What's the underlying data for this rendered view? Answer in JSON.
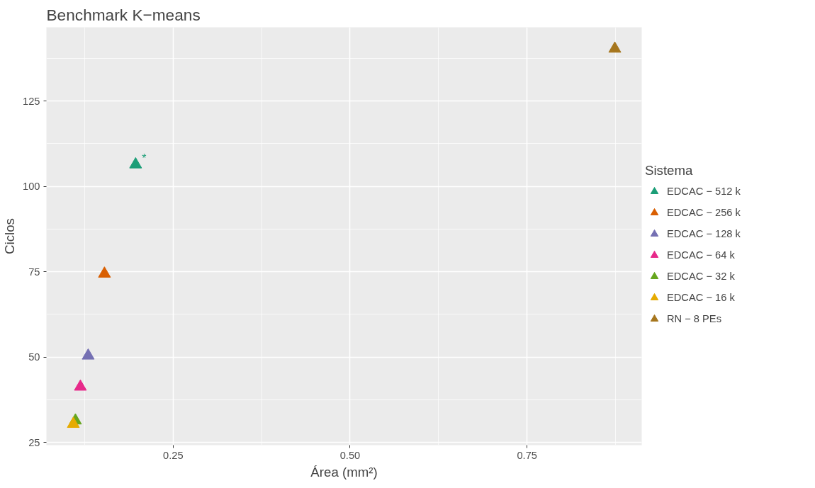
{
  "chart_data": {
    "type": "scatter",
    "title": "Benchmark K−means",
    "xlabel": "Área (mm²)",
    "ylabel": "Ciclos",
    "legend_title": "Sistema",
    "legend": "right",
    "grid": true,
    "marker": "triangle",
    "xlim": [
      0.071,
      0.912
    ],
    "ylim": [
      24.2,
      146.6
    ],
    "xticks": [
      {
        "value": 0.25,
        "label": "0.25"
      },
      {
        "value": 0.5,
        "label": "0.50"
      },
      {
        "value": 0.75,
        "label": "0.75"
      }
    ],
    "yticks": [
      25,
      50,
      75,
      100,
      125
    ],
    "series": [
      {
        "name": "EDCAC − 512 k",
        "color": "#1b9e77",
        "x": [
          0.197
        ],
        "values": [
          106.4
        ]
      },
      {
        "name": "EDCAC − 256 k",
        "color": "#d95f02",
        "x": [
          0.153
        ],
        "values": [
          74.4
        ]
      },
      {
        "name": "EDCAC − 128 k",
        "color": "#7570b3",
        "x": [
          0.13
        ],
        "values": [
          50.4
        ]
      },
      {
        "name": "EDCAC − 64 k",
        "color": "#e7298a",
        "x": [
          0.119
        ],
        "values": [
          41.3
        ]
      },
      {
        "name": "EDCAC − 32 k",
        "color": "#66a61e",
        "x": [
          0.112
        ],
        "values": [
          31.4
        ]
      },
      {
        "name": "EDCAC − 16 k",
        "color": "#e6ab02",
        "x": [
          0.109
        ],
        "values": [
          30.4
        ]
      },
      {
        "name": "RN − 8 PEs",
        "color": "#a6761d",
        "x": [
          0.874
        ],
        "values": [
          140.3
        ]
      }
    ],
    "annotations": [
      "*"
    ]
  }
}
